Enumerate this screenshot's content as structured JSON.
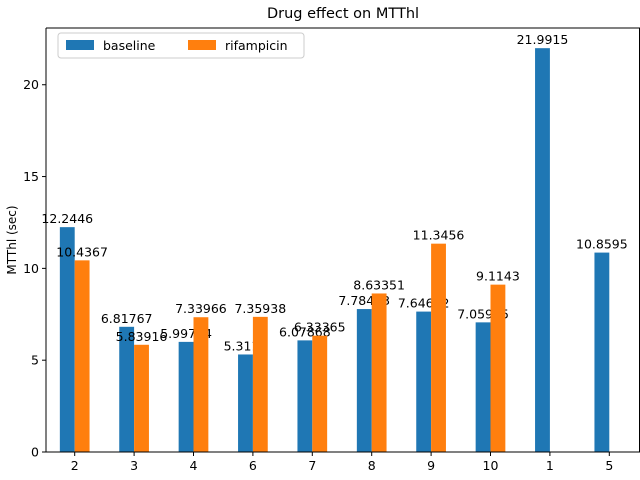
{
  "chart_data": {
    "type": "bar",
    "title": "Drug effect on MTThl",
    "xlabel": "",
    "ylabel": "MTThl (sec)",
    "categories": [
      "2",
      "3",
      "4",
      "6",
      "7",
      "8",
      "9",
      "10",
      "1",
      "5"
    ],
    "series": [
      {
        "name": "baseline",
        "color": "#1f77b4",
        "values": [
          12.2446,
          6.81767,
          5.99704,
          5.3114,
          6.07868,
          7.78463,
          7.64662,
          7.05995,
          21.9915,
          10.8595
        ],
        "labels": [
          "12.2446",
          "6.81767",
          "5.99704",
          "5.3114",
          "6.07868",
          "7.78463",
          "7.64662",
          "7.05995",
          "21.9915",
          "10.8595"
        ]
      },
      {
        "name": "rifampicin",
        "color": "#ff7f0e",
        "values": [
          10.4367,
          5.83916,
          7.33966,
          7.35938,
          6.33365,
          8.63351,
          11.3456,
          9.1143,
          null,
          null
        ],
        "labels": [
          "10.4367",
          "5.83916",
          "7.33966",
          "7.35938",
          "6.33365",
          "8.63351",
          "11.3456",
          "9.1143",
          null,
          null
        ]
      }
    ],
    "ylim": [
      0,
      23.09
    ],
    "yticks": [
      0,
      5,
      10,
      15,
      20
    ],
    "ytick_labels": [
      "0",
      "5",
      "10",
      "15",
      "20"
    ],
    "grid": false,
    "legend": {
      "placement": "top-left",
      "columns": 2
    }
  }
}
